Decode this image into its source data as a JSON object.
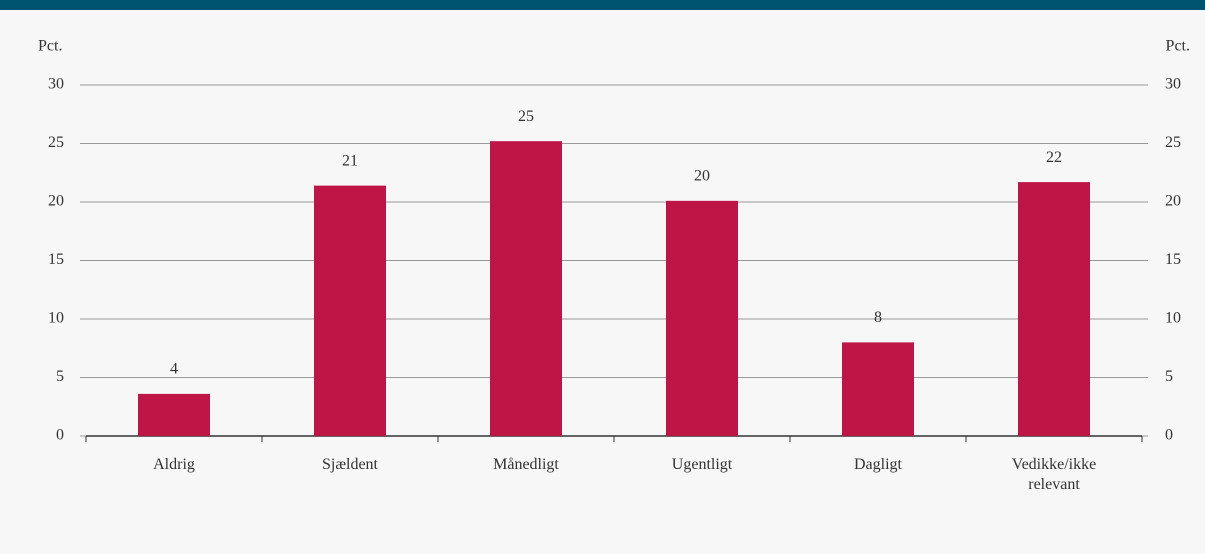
{
  "chart_data": {
    "type": "bar",
    "y_label": "Pct.",
    "categories": [
      "Aldrig",
      "Sjældent",
      "Månedligt",
      "Ugentligt",
      "Dagligt",
      "Vedikke/ikke relevant"
    ],
    "values": [
      3.6,
      21.4,
      25.2,
      20.1,
      8,
      21.7
    ],
    "value_labels": [
      "4",
      "21",
      "25",
      "20",
      "8",
      "22"
    ],
    "color": "#be1446",
    "ylim": [
      0,
      30
    ],
    "yticks": [
      0,
      5,
      10,
      15,
      20,
      25,
      30
    ],
    "grid": true
  }
}
